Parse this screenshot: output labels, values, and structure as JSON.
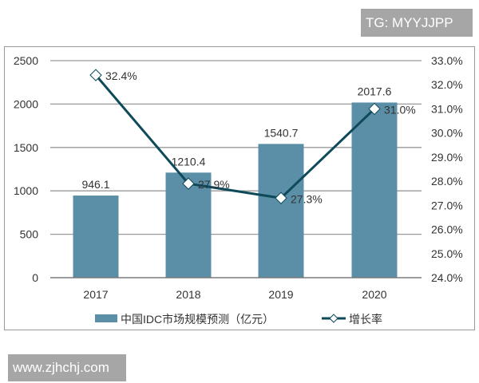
{
  "watermarks": {
    "top_right": "TG: MYYJJPP",
    "bottom_left": "www.zjhchj.com"
  },
  "colors": {
    "bar": "#5b8fa8",
    "line": "#0e4a5a",
    "marker_fill": "#ffffff",
    "grid": "#9a9a9a",
    "badge": "#a6a6a6"
  },
  "chart_data": {
    "type": "bar",
    "title": "",
    "categories": [
      "2017",
      "2018",
      "2019",
      "2020"
    ],
    "series": [
      {
        "name": "中国IDC市场规模预测（亿元）",
        "type": "bar",
        "axis": "left",
        "values": [
          946.1,
          1210.4,
          1540.7,
          2017.6
        ],
        "labels": [
          "946.1",
          "1210.4",
          "1540.7",
          "2017.6"
        ]
      },
      {
        "name": "增长率",
        "type": "line",
        "axis": "right",
        "values": [
          32.4,
          27.9,
          27.3,
          31.0
        ],
        "labels": [
          "32.4%",
          "27.9%",
          "27.3%",
          "31.0%"
        ]
      }
    ],
    "left_axis": {
      "ylim": [
        0,
        2500
      ],
      "ticks": [
        "0",
        "500",
        "1000",
        "1500",
        "2000",
        "2500"
      ]
    },
    "right_axis": {
      "ylim": [
        24.0,
        33.0
      ],
      "ticks": [
        "24.0%",
        "25.0%",
        "26.0%",
        "27.0%",
        "28.0%",
        "29.0%",
        "30.0%",
        "31.0%",
        "32.0%",
        "33.0%"
      ]
    },
    "xlabel": "",
    "ylabel": "",
    "grid": true,
    "legend_position": "bottom",
    "legend": [
      "中国IDC市场规模预测（亿元）",
      "增长率"
    ]
  }
}
